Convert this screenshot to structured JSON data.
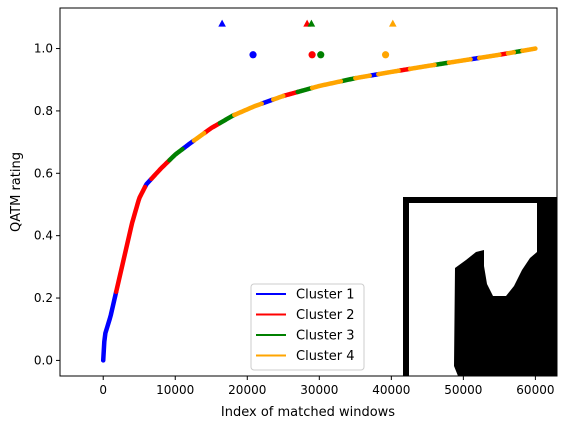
{
  "chart_data": {
    "type": "scatter",
    "title": "",
    "xlabel": "Index of matched windows",
    "ylabel": "QATM rating",
    "xlim": [
      -6000,
      63000
    ],
    "ylim": [
      -0.05,
      1.13
    ],
    "xticks": [
      0,
      10000,
      20000,
      30000,
      40000,
      50000,
      60000
    ],
    "xtick_labels": [
      "0",
      "10000",
      "20000",
      "30000",
      "40000",
      "50000",
      "60000"
    ],
    "yticks": [
      0.0,
      0.2,
      0.4,
      0.6,
      0.8,
      1.0
    ],
    "ytick_labels": [
      "0.0",
      "0.2",
      "0.4",
      "0.6",
      "0.8",
      "1.0"
    ],
    "grid": false,
    "legend_position": "lower-center",
    "curve_knots": {
      "x": [
        0,
        200,
        600,
        1000,
        1500,
        2000,
        2500,
        3000,
        3500,
        4000,
        5000,
        6000,
        8000,
        10000,
        12000,
        15000,
        18000,
        21000,
        25000,
        30000,
        35000,
        40000,
        45000,
        50000,
        55000,
        60000
      ],
      "y": [
        0.0,
        0.08,
        0.11,
        0.14,
        0.19,
        0.24,
        0.29,
        0.34,
        0.39,
        0.44,
        0.52,
        0.565,
        0.615,
        0.66,
        0.695,
        0.745,
        0.785,
        0.815,
        0.848,
        0.88,
        0.905,
        0.925,
        0.944,
        0.962,
        0.98,
        1.0
      ]
    },
    "series": [
      {
        "name": "Cluster 1",
        "color": "#0000ff",
        "segments": [
          [
            0,
            1800
          ],
          [
            5800,
            6700
          ],
          [
            11000,
            12600
          ],
          [
            22000,
            23600
          ],
          [
            37000,
            38200
          ],
          [
            51000,
            52200
          ]
        ]
      },
      {
        "name": "Cluster 2",
        "color": "#ff0000",
        "segments": [
          [
            1800,
            5800
          ],
          [
            6700,
            9200
          ],
          [
            14000,
            16200
          ],
          [
            25000,
            27000
          ],
          [
            41000,
            42600
          ],
          [
            55000,
            56200
          ]
        ]
      },
      {
        "name": "Cluster 3",
        "color": "#008000",
        "segments": [
          [
            9200,
            11000
          ],
          [
            16200,
            18200
          ],
          [
            27000,
            29000
          ],
          [
            33000,
            35000
          ],
          [
            46000,
            48000
          ],
          [
            57000,
            58200
          ]
        ]
      },
      {
        "name": "Cluster 4",
        "color": "#ffa500",
        "segments": [
          [
            12600,
            14000
          ],
          [
            18200,
            22000
          ],
          [
            23600,
            25000
          ],
          [
            29000,
            33000
          ],
          [
            35000,
            37000
          ],
          [
            38200,
            41000
          ],
          [
            42600,
            46000
          ],
          [
            48000,
            51000
          ],
          [
            52200,
            55000
          ],
          [
            56200,
            57000
          ],
          [
            58200,
            60000
          ]
        ]
      }
    ],
    "markers": [
      {
        "series": "Cluster 1",
        "shape": "circle",
        "x": 20800,
        "y": 0.98
      },
      {
        "series": "Cluster 2",
        "shape": "circle",
        "x": 29000,
        "y": 0.98
      },
      {
        "series": "Cluster 3",
        "shape": "circle",
        "x": 30200,
        "y": 0.98
      },
      {
        "series": "Cluster 4",
        "shape": "circle",
        "x": 39200,
        "y": 0.98
      },
      {
        "series": "Cluster 1",
        "shape": "triangle",
        "x": 16500,
        "y": 1.08
      },
      {
        "series": "Cluster 2",
        "shape": "triangle",
        "x": 28300,
        "y": 1.08
      },
      {
        "series": "Cluster 3",
        "shape": "triangle",
        "x": 28900,
        "y": 1.08
      },
      {
        "series": "Cluster 4",
        "shape": "triangle",
        "x": 40200,
        "y": 1.08
      }
    ],
    "legend": [
      "Cluster 1",
      "Cluster 2",
      "Cluster 3",
      "Cluster 4"
    ],
    "inset_image": {
      "description_colors": [
        "#000000",
        "#ffffff"
      ]
    }
  }
}
